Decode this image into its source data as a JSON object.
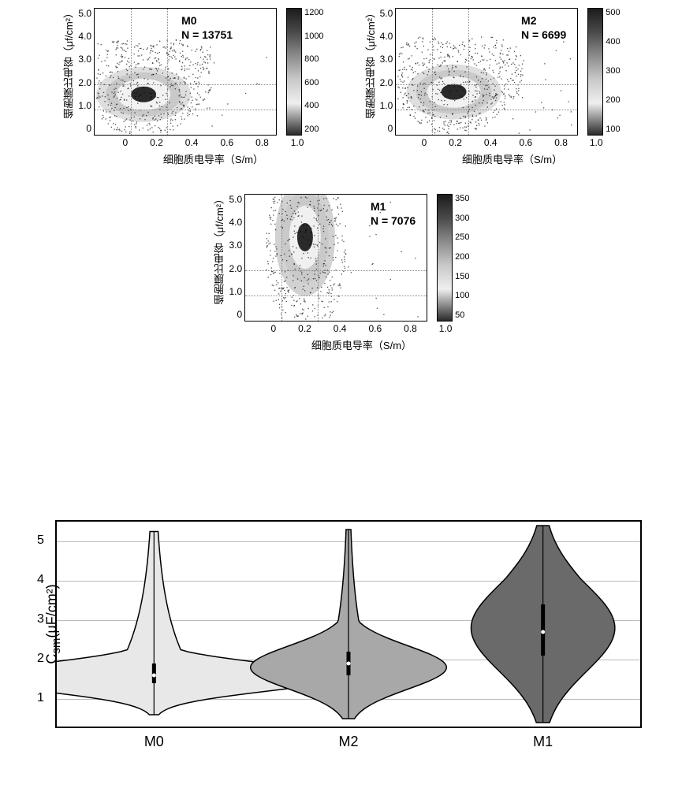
{
  "scatter_common": {
    "xlabel": "细胞质电导率（S/m）",
    "ylabel": "细胞膜比电容（μf/cm²）",
    "xlim": [
      0,
      1.0
    ],
    "ylim": [
      0,
      5.0
    ],
    "xticks": [
      "0",
      "0.2",
      "0.4",
      "0.6",
      "0.8",
      "1.0"
    ],
    "yticks": [
      "5.0",
      "4.0",
      "3.0",
      "2.0",
      "1.0",
      "0"
    ],
    "guide_h": [
      1.0,
      2.0
    ],
    "guide_v": [
      0.2,
      0.4
    ],
    "colorbar_gradient": "grayscale-density"
  },
  "scatter_plots": [
    {
      "id": "M0",
      "title": "M0",
      "N": "N = 13751",
      "cb_ticks": [
        "1200",
        "1000",
        "800",
        "600",
        "400",
        "200"
      ],
      "center_x": 0.27,
      "center_y": 1.6,
      "spread": 0.5,
      "shape": "triangular"
    },
    {
      "id": "M2",
      "title": "M2",
      "N": "N = 6699",
      "cb_ticks": [
        "500",
        "400",
        "300",
        "200",
        "100"
      ],
      "center_x": 0.32,
      "center_y": 1.7,
      "spread": 0.4,
      "shape": "triangular"
    },
    {
      "id": "M1",
      "title": "M1",
      "N": "N = 7076",
      "cb_ticks": [
        "350",
        "300",
        "250",
        "200",
        "150",
        "100",
        "50"
      ],
      "center_x": 0.33,
      "center_y": 3.0,
      "spread": 0.7,
      "shape": "elongated"
    }
  ],
  "violin": {
    "ylabel_html": "C<sub>sm</sub>(μF/cm²)",
    "yticks": [
      1,
      2,
      3,
      4,
      5
    ],
    "ylim": [
      0.3,
      5.5
    ],
    "categories": [
      "M0",
      "M2",
      "M1"
    ],
    "fills": [
      "#e8e8e8",
      "#a8a8a8",
      "#6a6a6a"
    ],
    "stroke": "#000000",
    "grid_color": "#bbbbbb",
    "data": {
      "M0": {
        "median": 1.6,
        "q1": 1.4,
        "q3": 1.9,
        "whisk_lo": 0.6,
        "whisk_hi": 5.25,
        "peak_w": 1.0,
        "peak_y": 1.55,
        "narrow": true
      },
      "M2": {
        "median": 1.9,
        "q1": 1.6,
        "q3": 2.2,
        "whisk_lo": 0.5,
        "whisk_hi": 5.3,
        "peak_w": 0.75,
        "peak_y": 1.8,
        "narrow": false
      },
      "M1": {
        "median": 2.7,
        "q1": 2.1,
        "q3": 3.4,
        "whisk_lo": 0.4,
        "whisk_hi": 5.4,
        "peak_w": 0.55,
        "peak_y": 2.8,
        "narrow": false,
        "wide": true
      }
    }
  },
  "colors": {
    "bg": "#ffffff",
    "axis": "#000000",
    "guide": "#888888"
  }
}
